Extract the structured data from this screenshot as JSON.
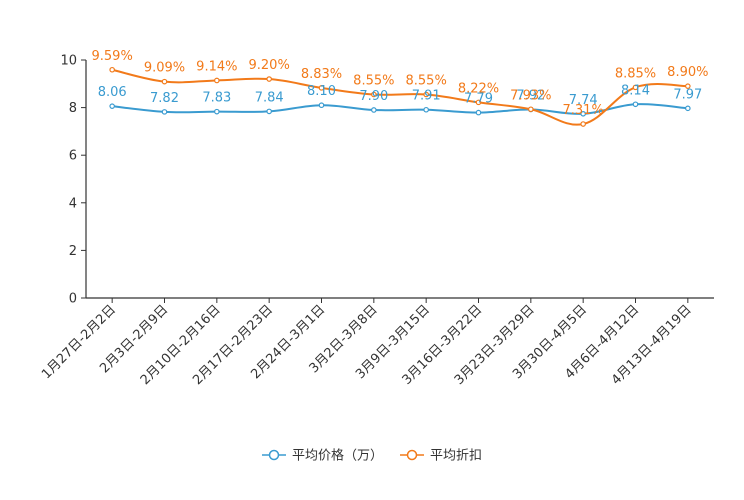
{
  "chart_data": {
    "type": "line",
    "categories": [
      "1月27日-2月2日",
      "2月3日-2月9日",
      "2月10日-2月16日",
      "2月17日-2月23日",
      "2月24日-3月1日",
      "3月2日-3月8日",
      "3月9日-3月15日",
      "3月16日-3月22日",
      "3月23日-3月29日",
      "3月30日-4月5日",
      "4月6日-4月12日",
      "4月13日-4月19日"
    ],
    "ylim": [
      0,
      10
    ],
    "yticks": [
      "0",
      "2",
      "4",
      "6",
      "8",
      "10"
    ],
    "series": [
      {
        "name": "平均价格（万）",
        "color": "#3a9bd0",
        "values": [
          8.06,
          7.82,
          7.83,
          7.84,
          8.1,
          7.9,
          7.91,
          7.79,
          7.92,
          7.74,
          8.14,
          7.97
        ],
        "labels": [
          "8.06",
          "7.82",
          "7.83",
          "7.84",
          "8.10",
          "7.90",
          "7.91",
          "7.79",
          "7.92",
          "7.74",
          "8.14",
          "7.97"
        ]
      },
      {
        "name": "平均折扣",
        "color": "#f27a1a",
        "values": [
          9.59,
          9.09,
          9.14,
          9.2,
          8.83,
          8.55,
          8.55,
          8.22,
          7.93,
          7.31,
          8.85,
          8.9
        ],
        "labels": [
          "9.59%",
          "9.09%",
          "9.14%",
          "9.20%",
          "8.83%",
          "8.55%",
          "8.55%",
          "8.22%",
          "7.93%",
          "7.31%",
          "8.85%",
          "8.90%"
        ]
      }
    ],
    "legend_position": "bottom-center",
    "grid": false
  }
}
